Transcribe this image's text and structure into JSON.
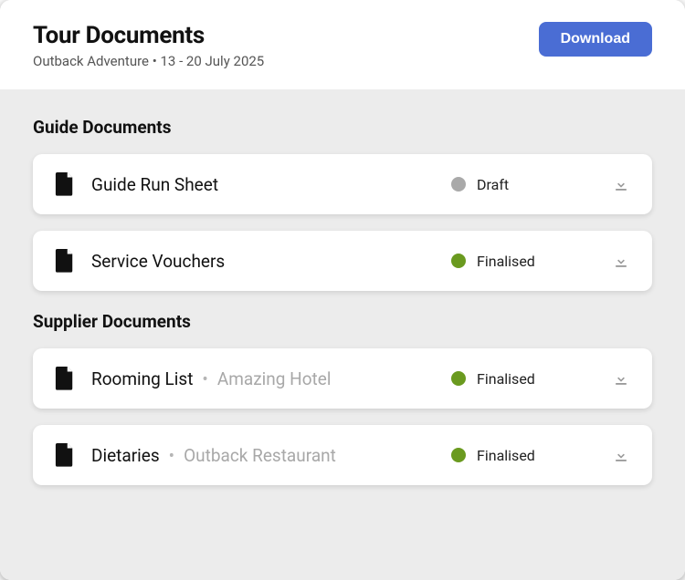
{
  "header": {
    "title": "Tour Documents",
    "subtitle": "Outback Adventure  •  13 - 20 July 2025",
    "download_label": "Download",
    "download_bg": "#4a6dd4"
  },
  "content_bg": "#ececec",
  "status_colors": {
    "draft": "#a9a9a9",
    "finalised": "#6a9a1f"
  },
  "sections": [
    {
      "title": "Guide Documents",
      "items": [
        {
          "name": "Guide Run Sheet",
          "sub": null,
          "status_label": "Draft",
          "status_key": "draft"
        },
        {
          "name": "Service Vouchers",
          "sub": null,
          "status_label": "Finalised",
          "status_key": "finalised"
        }
      ]
    },
    {
      "title": "Supplier Documents",
      "items": [
        {
          "name": "Rooming List",
          "sub": "Amazing Hotel",
          "status_label": "Finalised",
          "status_key": "finalised"
        },
        {
          "name": "Dietaries",
          "sub": "Outback Restaurant",
          "status_label": "Finalised",
          "status_key": "finalised"
        }
      ]
    }
  ]
}
